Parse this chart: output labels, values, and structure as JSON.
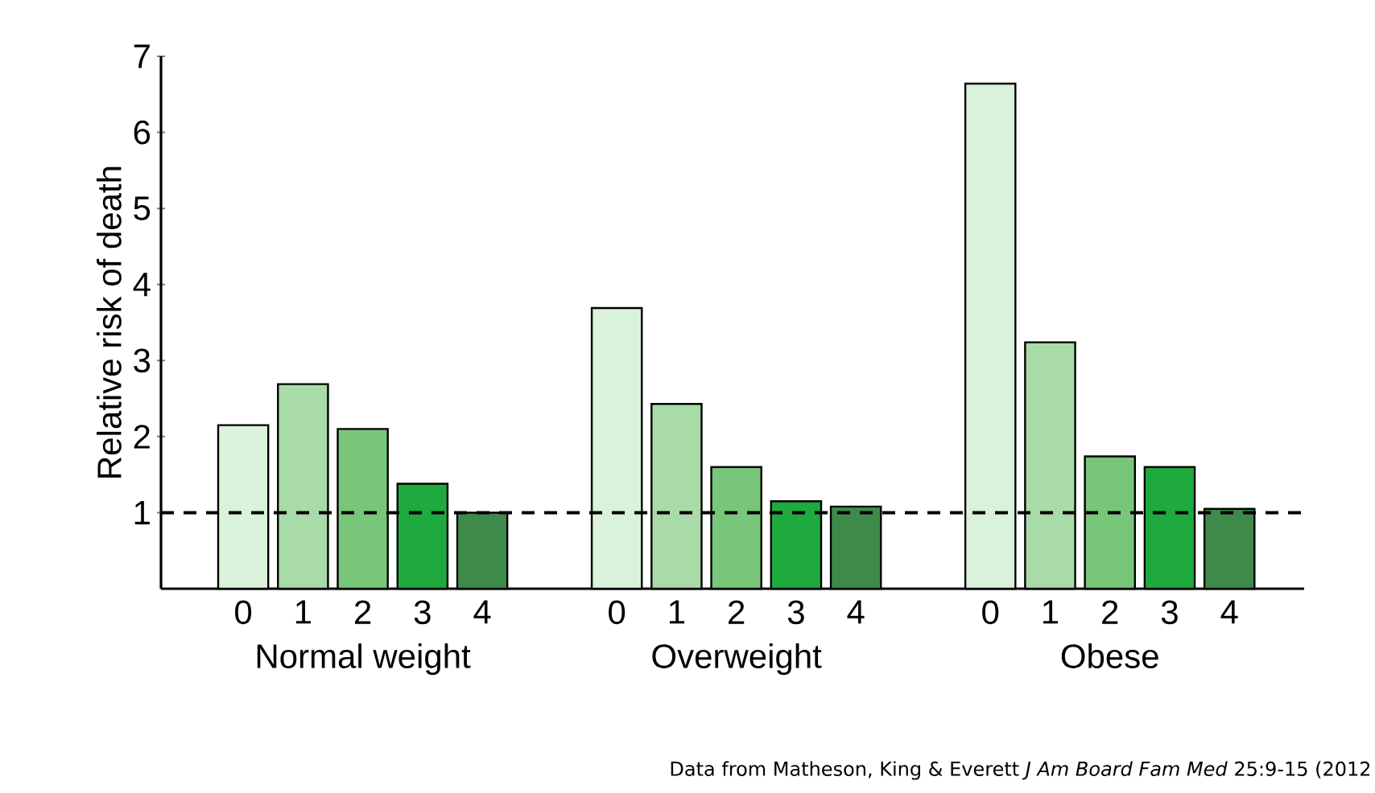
{
  "chart_data": {
    "type": "bar",
    "ylabel": "Relative risk of death",
    "categories": [
      "Normal weight",
      "Overweight",
      "Obese"
    ],
    "series": [
      {
        "name": "0",
        "color": "#d9f2d9",
        "values": [
          2.15,
          3.69,
          6.64
        ]
      },
      {
        "name": "1",
        "color": "#a8dba8",
        "values": [
          2.69,
          2.43,
          3.24
        ]
      },
      {
        "name": "2",
        "color": "#78c679",
        "values": [
          2.1,
          1.6,
          1.74
        ]
      },
      {
        "name": "3",
        "color": "#1faa3f",
        "values": [
          1.38,
          1.15,
          1.6
        ]
      },
      {
        "name": "4",
        "color": "#3e8a4a",
        "values": [
          1.0,
          1.08,
          1.05
        ]
      }
    ],
    "ylim": [
      0,
      7
    ],
    "yticks": [
      1,
      2,
      3,
      4,
      5,
      6,
      7
    ],
    "ref_lines": [
      {
        "axis": "y",
        "value": 1,
        "line_style": "dashed",
        "color": "#000000"
      }
    ],
    "annotations": [
      "Data from Matheson, King & Everett *J Am Board Fam Med* 25:9-15 (2012"
    ]
  }
}
